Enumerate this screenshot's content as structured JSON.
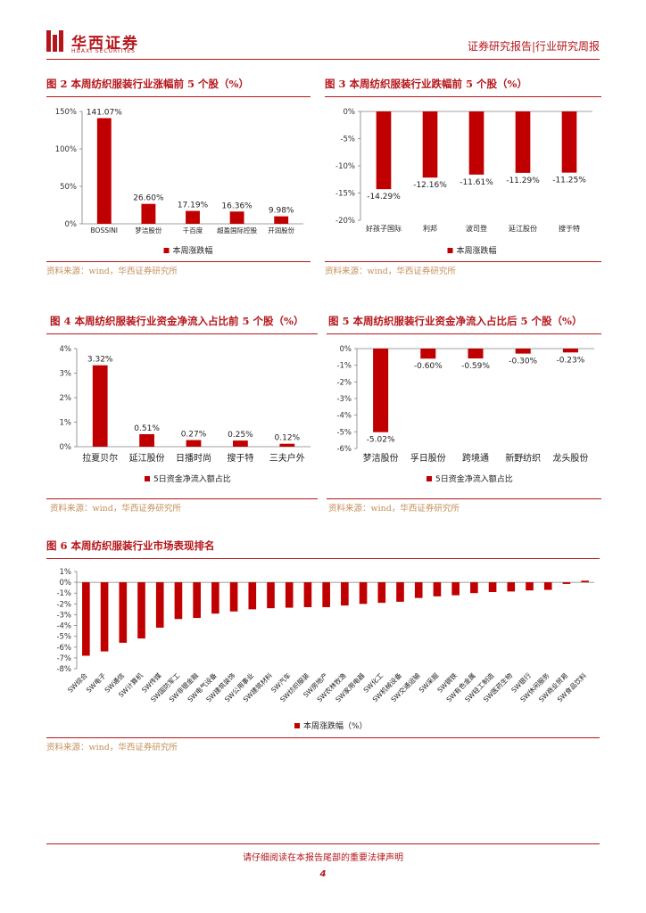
{
  "header": {
    "logo_cn": "华西证券",
    "logo_en": "HUAXI SECURITIES",
    "right_text": "证券研究报告|行业研究周报"
  },
  "figures": {
    "fig2": {
      "title": "图 2 本周纺织服装行业涨幅前 5 个股（%）",
      "source": "资料来源：wind，华西证券研究所"
    },
    "fig3": {
      "title": "图 3 本周纺织服装行业跌幅前 5 个股（%）",
      "source": "资料来源：wind，华西证券研究所"
    },
    "fig4": {
      "title": "图 4 本周纺织服装行业资金净流入占比前 5 个股（%）",
      "source": "资料来源：wind，华西证券研究所"
    },
    "fig5": {
      "title": "图 5 本周纺织服装行业资金净流入占比后 5 个股（%）",
      "source": "资料来源：wind，华西证券研究所"
    },
    "fig6": {
      "title": "图 6 本周纺织服装行业市场表现排名",
      "source": "资料来源：wind，华西证券研究所"
    }
  },
  "chart_data": [
    {
      "id": "fig2",
      "type": "bar",
      "categories": [
        "BOSSINI",
        "梦洁股份",
        "千百度",
        "超盈国际控股",
        "开润股份"
      ],
      "values": [
        141.07,
        26.6,
        17.19,
        16.36,
        9.98
      ],
      "data_labels": [
        "141.07%",
        "26.60%",
        "17.19%",
        "16.36%",
        "9.98%"
      ],
      "ylim": [
        0,
        150
      ],
      "yticks": [
        0,
        50,
        100,
        150
      ],
      "ytick_labels": [
        "0%",
        "50%",
        "100%",
        "150%"
      ],
      "legend": "本周涨跌幅",
      "color": "#c00000"
    },
    {
      "id": "fig3",
      "type": "bar",
      "categories": [
        "好孩子国际",
        "利邦",
        "波司登",
        "延江股份",
        "搜于特"
      ],
      "values": [
        -14.29,
        -12.16,
        -11.61,
        -11.29,
        -11.25
      ],
      "data_labels": [
        "-14.29%",
        "-12.16%",
        "-11.61%",
        "-11.29%",
        "-11.25%"
      ],
      "ylim": [
        -20,
        0
      ],
      "yticks": [
        0,
        -5,
        -10,
        -15,
        -20
      ],
      "ytick_labels": [
        "0%",
        "-5%",
        "-10%",
        "-15%",
        "-20%"
      ],
      "legend": "本周涨跌幅",
      "color": "#c00000"
    },
    {
      "id": "fig4",
      "type": "bar",
      "categories": [
        "拉夏贝尔",
        "延江股份",
        "日播时尚",
        "搜于特",
        "三夫户外"
      ],
      "values": [
        3.32,
        0.51,
        0.27,
        0.25,
        0.12
      ],
      "data_labels": [
        "3.32%",
        "0.51%",
        "0.27%",
        "0.25%",
        "0.12%"
      ],
      "ylim": [
        0,
        4
      ],
      "yticks": [
        0,
        1,
        2,
        3,
        4
      ],
      "ytick_labels": [
        "0%",
        "1%",
        "2%",
        "3%",
        "4%"
      ],
      "legend": "5日资金净流入额占比",
      "color": "#c00000"
    },
    {
      "id": "fig5",
      "type": "bar",
      "categories": [
        "梦洁股份",
        "孚日股份",
        "跨境通",
        "新野纺织",
        "龙头股份"
      ],
      "values": [
        -5.02,
        -0.6,
        -0.59,
        -0.3,
        -0.23
      ],
      "data_labels": [
        "-5.02%",
        "-0.60%",
        "-0.59%",
        "-0.30%",
        "-0.23%"
      ],
      "ylim": [
        -6,
        0
      ],
      "yticks": [
        0,
        -1,
        -2,
        -3,
        -4,
        -5,
        -6
      ],
      "ytick_labels": [
        "0%",
        "-1%",
        "-2%",
        "-3%",
        "-4%",
        "-5%",
        "-6%"
      ],
      "legend": "5日资金净流入额占比",
      "color": "#c00000"
    },
    {
      "id": "fig6",
      "type": "bar",
      "categories": [
        "SW综合",
        "SW电子",
        "SW通信",
        "SW计算机",
        "SW传媒",
        "SW国防军工",
        "SW非银金融",
        "SW电气设备",
        "SW建筑装饰",
        "SW公用事业",
        "SW建筑材料",
        "SW汽车",
        "SW纺织服装",
        "SW房地产",
        "SW农林牧渔",
        "SW家用电器",
        "SW化工",
        "SW机械设备",
        "SW交通运输",
        "SW采掘",
        "SW钢铁",
        "SW有色金属",
        "SW轻工制造",
        "SW医药生物",
        "SW银行",
        "SW休闲服务",
        "SW商业贸易",
        "SW食品饮料"
      ],
      "values": [
        -6.8,
        -6.4,
        -5.6,
        -5.2,
        -4.2,
        -3.4,
        -3.3,
        -2.9,
        -2.7,
        -2.5,
        -2.4,
        -2.35,
        -2.3,
        -2.3,
        -2.15,
        -2.0,
        -1.9,
        -1.8,
        -1.45,
        -1.3,
        -1.2,
        -1.0,
        -0.9,
        -0.85,
        -0.75,
        -0.7,
        -0.15,
        0.15
      ],
      "ylim": [
        -8,
        1
      ],
      "yticks": [
        1,
        0,
        -1,
        -2,
        -3,
        -4,
        -5,
        -6,
        -7,
        -8
      ],
      "ytick_labels": [
        "1%",
        "0%",
        "-1%",
        "-2%",
        "-3%",
        "-4%",
        "-5%",
        "-6%",
        "-7%",
        "-8%"
      ],
      "legend": "本周涨跌幅（%）",
      "color": "#c00000"
    }
  ],
  "footer": {
    "disclaimer": "请仔细阅读在本报告尾部的重要法律声明",
    "page": "4"
  }
}
